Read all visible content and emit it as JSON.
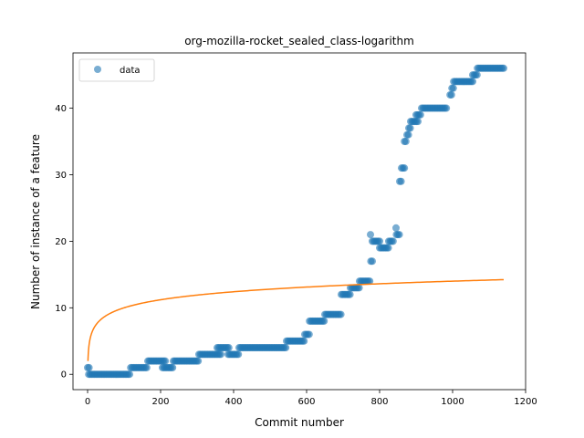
{
  "chart_data": {
    "type": "scatter",
    "title": "org-mozilla-rocket_sealed_class-logarithm",
    "xlabel": "Commit number",
    "ylabel": "Number of instance of a feature",
    "xlim": [
      -40,
      1200
    ],
    "ylim": [
      -2.3,
      48.3
    ],
    "xticks": [
      0,
      200,
      400,
      600,
      800,
      1000,
      1200
    ],
    "yticks": [
      0,
      10,
      20,
      30,
      40
    ],
    "grid": false,
    "legend": {
      "placement": "top-left",
      "entries": [
        "data"
      ]
    },
    "colors": {
      "data": "#1f77b4",
      "fit": "#ff7f0e"
    },
    "series": [
      {
        "name": "data",
        "kind": "points",
        "segments": [
          {
            "x": [
              0,
              5
            ],
            "y": 1
          },
          {
            "x": [
              3,
              118
            ],
            "y": 0
          },
          {
            "x": [
              118,
              165
            ],
            "y": 1
          },
          {
            "x": [
              165,
              215
            ],
            "y": 2
          },
          {
            "x": [
              205,
              235
            ],
            "y": 1
          },
          {
            "x": [
              235,
              305
            ],
            "y": 2
          },
          {
            "x": [
              305,
              365
            ],
            "y": 3
          },
          {
            "x": [
              355,
              390
            ],
            "y": 4
          },
          {
            "x": [
              385,
              415
            ],
            "y": 3
          },
          {
            "x": [
              415,
              545
            ],
            "y": 4
          },
          {
            "x": [
              545,
              595
            ],
            "y": 5
          },
          {
            "x": [
              595,
              608
            ],
            "y": 6
          },
          {
            "x": [
              608,
              650
            ],
            "y": 8
          },
          {
            "x": [
              650,
              695
            ],
            "y": 9
          },
          {
            "x": [
              695,
              720
            ],
            "y": 12
          },
          {
            "x": [
              720,
              745
            ],
            "y": 13
          },
          {
            "x": [
              745,
              775
            ],
            "y": 14
          },
          {
            "x": [
              776,
              782
            ],
            "y": 17
          },
          {
            "x": [
              780,
              800
            ],
            "y": 20
          },
          {
            "x": [
              800,
              825
            ],
            "y": 19
          },
          {
            "x": [
              825,
              840
            ],
            "y": 20
          },
          {
            "x": [
              846,
              856
            ],
            "y": 21
          },
          {
            "x": [
              855,
              862
            ],
            "y": 29
          },
          {
            "x": [
              860,
              868
            ],
            "y": 31
          },
          {
            "x": [
              868,
              875
            ],
            "y": 35
          },
          {
            "x": [
              875,
              880
            ],
            "y": 36
          },
          {
            "x": [
              880,
              885
            ],
            "y": 37
          },
          {
            "x": [
              885,
              905
            ],
            "y": 38
          },
          {
            "x": [
              900,
              915
            ],
            "y": 39
          },
          {
            "x": [
              915,
              985
            ],
            "y": 40
          },
          {
            "x": [
              993,
              998
            ],
            "y": 42
          },
          {
            "x": [
              998,
              1003
            ],
            "y": 43
          },
          {
            "x": [
              1003,
              1055
            ],
            "y": 44
          },
          {
            "x": [
              1055,
              1068
            ],
            "y": 45
          },
          {
            "x": [
              1068,
              1140
            ],
            "y": 46
          }
        ],
        "points": [
          {
            "x": 775,
            "y": 21
          },
          {
            "x": 845,
            "y": 22
          }
        ]
      },
      {
        "name": "",
        "kind": "line",
        "model": "logarithmic",
        "x_range": [
          1,
          1140
        ],
        "a": 4.0,
        "b": 2.0
      }
    ]
  }
}
